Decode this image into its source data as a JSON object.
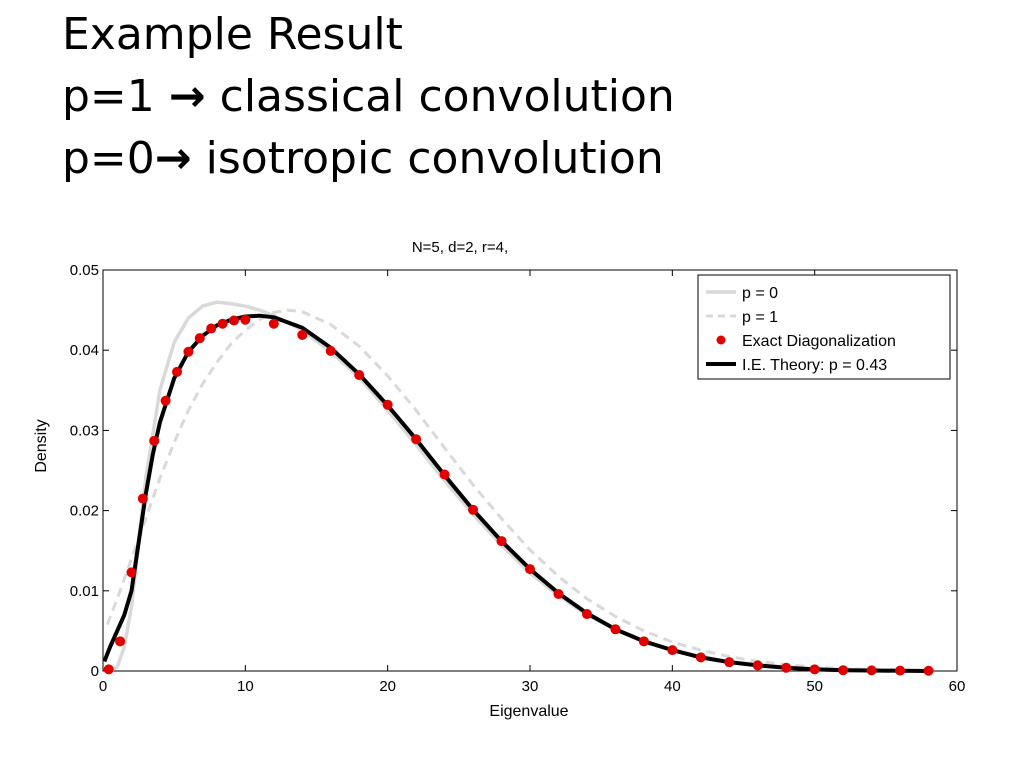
{
  "slide": {
    "line1": "Example Result",
    "line2_prefix": "p=1 ",
    "line2_arrow": "→",
    "line2_suffix": " classical convolution",
    "line3_prefix": "p=0",
    "line3_arrow": "→",
    "line3_suffix": "  isotropic convolution"
  },
  "chart_data": {
    "type": "line",
    "title": "N=5, d=2, r=4,",
    "xlabel": "Eigenvalue",
    "ylabel": "Density",
    "xlim": [
      0,
      60
    ],
    "ylim": [
      0,
      0.05
    ],
    "xticks": [
      0,
      10,
      20,
      30,
      40,
      50,
      60
    ],
    "xtick_labels": [
      "0",
      "10",
      "20",
      "30",
      "40",
      "50",
      "60"
    ],
    "yticks": [
      0,
      0.01,
      0.02,
      0.03,
      0.04,
      0.05
    ],
    "ytick_labels": [
      "0",
      "0.01",
      "0.02",
      "0.03",
      "0.04",
      "0.05"
    ],
    "grid": false,
    "legend_position": "top-right",
    "colors": {
      "p0": "#d9d9d9",
      "p1": "#d9d9d9",
      "exact": "#e00000",
      "theory": "#000000"
    },
    "series": [
      {
        "name": "p = 0",
        "style": "solid-light-gray",
        "x": [
          0.5,
          1,
          1.5,
          2,
          2.5,
          3,
          4,
          5,
          6,
          7,
          8,
          9,
          10,
          11,
          12,
          14,
          16,
          18,
          20,
          22,
          24,
          26,
          28,
          30,
          32,
          34,
          36,
          38,
          40,
          42,
          44,
          46,
          48,
          50,
          52,
          54,
          56,
          58
        ],
        "y": [
          0.0,
          0.0005,
          0.003,
          0.008,
          0.016,
          0.024,
          0.035,
          0.041,
          0.044,
          0.0455,
          0.046,
          0.0458,
          0.0455,
          0.045,
          0.0443,
          0.0425,
          0.0398,
          0.0366,
          0.0325,
          0.0282,
          0.0237,
          0.0195,
          0.0157,
          0.0122,
          0.0094,
          0.007,
          0.0052,
          0.0037,
          0.0026,
          0.0018,
          0.0012,
          0.0008,
          0.0005,
          0.0003,
          0.0002,
          0.0001,
          5e-05,
          0.0
        ]
      },
      {
        "name": "p = 1",
        "style": "dashed-light-gray",
        "x": [
          0.3,
          1,
          2,
          3,
          4,
          5,
          6,
          7,
          8,
          9,
          10,
          11,
          12,
          13,
          14,
          16,
          18,
          20,
          22,
          24,
          26,
          28,
          30,
          32,
          34,
          36,
          38,
          40,
          42,
          44,
          46,
          48,
          50,
          52,
          54,
          56,
          58
        ],
        "y": [
          0.0058,
          0.009,
          0.014,
          0.019,
          0.024,
          0.0285,
          0.0325,
          0.0358,
          0.0385,
          0.0408,
          0.0425,
          0.0438,
          0.0447,
          0.045,
          0.0448,
          0.0432,
          0.0405,
          0.0368,
          0.0325,
          0.0278,
          0.0232,
          0.019,
          0.0151,
          0.0118,
          0.009,
          0.0068,
          0.005,
          0.0036,
          0.0026,
          0.0018,
          0.0012,
          0.0008,
          0.0005,
          0.0003,
          0.0002,
          0.0001,
          0.0
        ]
      },
      {
        "name": "Exact Diagonalization",
        "style": "red-dots",
        "x": [
          0.4,
          1.2,
          2.0,
          2.8,
          3.6,
          4.4,
          5.2,
          6.0,
          6.8,
          7.6,
          8.4,
          9.2,
          10.0,
          12.0,
          14.0,
          16.0,
          18.0,
          20.0,
          22.0,
          24.0,
          26.0,
          28.0,
          30.0,
          32.0,
          34.0,
          36.0,
          38.0,
          40.0,
          42.0,
          44.0,
          46.0,
          48.0,
          50.0,
          52.0,
          54.0,
          56.0,
          58.0
        ],
        "y": [
          0.0002,
          0.0037,
          0.0123,
          0.0215,
          0.0287,
          0.0337,
          0.0373,
          0.0398,
          0.0415,
          0.0427,
          0.0433,
          0.0437,
          0.0438,
          0.0433,
          0.0419,
          0.0399,
          0.0369,
          0.0332,
          0.0289,
          0.0245,
          0.0201,
          0.0162,
          0.0127,
          0.0096,
          0.0071,
          0.0052,
          0.0037,
          0.0026,
          0.0017,
          0.0011,
          0.0007,
          0.0004,
          0.0002,
          0.0001,
          8e-05,
          5e-05,
          3e-05
        ]
      },
      {
        "name": "I.E. Theory: p = 0.43",
        "style": "solid-black-thick",
        "x": [
          0.1,
          0.5,
          1,
          1.5,
          2,
          2.5,
          3,
          3.5,
          4,
          5,
          6,
          7,
          8,
          9,
          10,
          11,
          12,
          14,
          16,
          18,
          20,
          22,
          24,
          26,
          28,
          30,
          32,
          34,
          36,
          38,
          40,
          42,
          44,
          46,
          48,
          50,
          52,
          54,
          56,
          58
        ],
        "y": [
          0.0012,
          0.003,
          0.005,
          0.007,
          0.01,
          0.016,
          0.022,
          0.027,
          0.031,
          0.0365,
          0.0398,
          0.0418,
          0.0431,
          0.0438,
          0.0442,
          0.0443,
          0.0441,
          0.0428,
          0.0403,
          0.037,
          0.0331,
          0.0289,
          0.0244,
          0.0201,
          0.0162,
          0.0127,
          0.0097,
          0.0072,
          0.0052,
          0.0037,
          0.0026,
          0.0017,
          0.0011,
          0.0007,
          0.0004,
          0.0002,
          0.0001,
          6e-05,
          3e-05,
          0.0
        ]
      }
    ]
  }
}
